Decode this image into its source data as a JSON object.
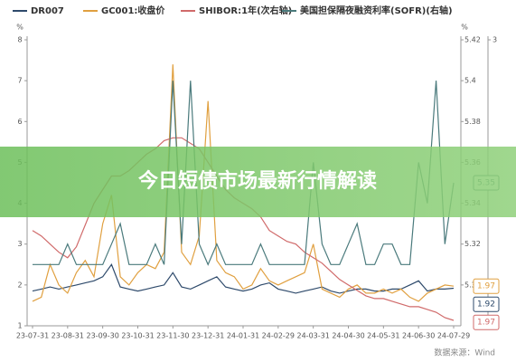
{
  "chart_data": {
    "type": "line",
    "banner": "今日短债市场最新行情解读",
    "source": "数据来源：Wind",
    "y_unit": "%",
    "y2_unit": "%",
    "categories": [
      "23-07-31",
      null,
      null,
      null,
      "23-08-31",
      null,
      null,
      null,
      "23-09-30",
      null,
      null,
      null,
      "23-10-31",
      null,
      null,
      null,
      "23-11-30",
      null,
      null,
      null,
      "23-12-31",
      null,
      null,
      null,
      "24-01-31",
      null,
      null,
      null,
      "24-02-29",
      null,
      null,
      null,
      "24-03-31",
      null,
      null,
      null,
      "24-04-30",
      null,
      null,
      null,
      "24-05-31",
      null,
      null,
      null,
      "24-06-30",
      null,
      null,
      null,
      "24-07-29"
    ],
    "ylim": [
      1,
      8
    ],
    "yticks": [
      1,
      2,
      3,
      4,
      5,
      6,
      7,
      8
    ],
    "y2lim": [
      5.28,
      5.42
    ],
    "y2ticks": [
      5.3,
      5.32,
      5.34,
      5.36,
      5.38,
      5.4,
      5.42
    ],
    "y3lim": [
      1.95,
      3
    ],
    "y3ticks": [
      3
    ],
    "grid": false,
    "series": [
      {
        "name": "DR007",
        "color": "#2e4a6b",
        "values": [
          1.85,
          1.9,
          1.95,
          1.9,
          1.95,
          2.0,
          2.05,
          2.1,
          2.2,
          2.5,
          1.95,
          1.9,
          1.85,
          1.9,
          1.95,
          2.0,
          2.3,
          1.95,
          1.9,
          2.0,
          2.1,
          2.2,
          1.95,
          1.9,
          1.85,
          1.9,
          2.0,
          2.05,
          1.9,
          1.85,
          1.8,
          1.85,
          1.9,
          1.95,
          1.85,
          1.8,
          1.85,
          1.9,
          1.9,
          1.85,
          1.85,
          1.9,
          1.9,
          2.0,
          2.1,
          1.85,
          1.9,
          1.9,
          1.92
        ]
      },
      {
        "name": "GC001:收盘价",
        "color": "#e0a040",
        "values": [
          1.6,
          1.7,
          2.5,
          2.0,
          1.8,
          2.3,
          2.6,
          2.2,
          3.5,
          4.2,
          2.2,
          2.0,
          2.3,
          2.5,
          2.4,
          2.8,
          7.4,
          2.8,
          2.5,
          3.2,
          6.5,
          2.6,
          2.3,
          2.2,
          1.9,
          2.0,
          2.4,
          2.1,
          2.0,
          2.1,
          2.2,
          2.3,
          3.0,
          1.9,
          1.8,
          1.7,
          1.9,
          2.0,
          1.8,
          1.8,
          1.9,
          1.8,
          1.9,
          1.7,
          1.6,
          1.8,
          1.9,
          2.0,
          1.97
        ]
      },
      {
        "name": "SHIBOR:1年(次右轴)",
        "color": "#d06a6a",
        "axis": "y3",
        "values": [
          2.3,
          2.28,
          2.25,
          2.22,
          2.2,
          2.24,
          2.32,
          2.4,
          2.45,
          2.5,
          2.5,
          2.52,
          2.55,
          2.58,
          2.6,
          2.63,
          2.64,
          2.64,
          2.62,
          2.6,
          2.55,
          2.5,
          2.45,
          2.42,
          2.4,
          2.38,
          2.35,
          2.3,
          2.28,
          2.26,
          2.25,
          2.22,
          2.2,
          2.18,
          2.15,
          2.12,
          2.1,
          2.08,
          2.06,
          2.05,
          2.05,
          2.04,
          2.03,
          2.02,
          2.02,
          2.01,
          2.0,
          1.98,
          1.97
        ]
      },
      {
        "name": "美国担保隔夜融资利率(SOFR)(右轴)",
        "color": "#4a7a7c",
        "axis": "y2",
        "values": [
          5.31,
          5.31,
          5.31,
          5.31,
          5.32,
          5.31,
          5.31,
          5.31,
          5.31,
          5.32,
          5.33,
          5.31,
          5.31,
          5.31,
          5.32,
          5.31,
          5.4,
          5.32,
          5.4,
          5.32,
          5.31,
          5.32,
          5.31,
          5.31,
          5.31,
          5.31,
          5.32,
          5.31,
          5.31,
          5.31,
          5.31,
          5.31,
          5.36,
          5.32,
          5.31,
          5.31,
          5.32,
          5.33,
          5.31,
          5.31,
          5.32,
          5.32,
          5.31,
          5.31,
          5.36,
          5.34,
          5.4,
          5.32,
          5.35
        ]
      }
    ]
  }
}
